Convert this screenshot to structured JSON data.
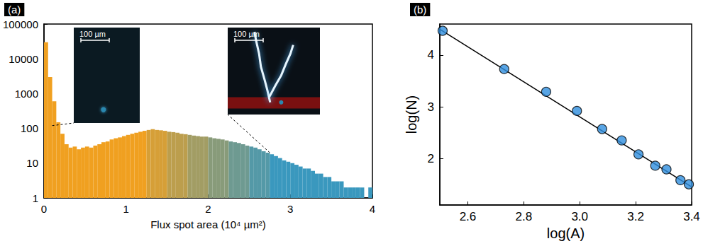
{
  "chart_data": [
    {
      "type": "histogram",
      "panel_label": "(a)",
      "x_label": "Flux spot area (10⁴ µm²)",
      "bins": [
        0,
        0.05,
        0.1,
        0.15,
        0.2,
        0.25,
        0.3,
        0.35,
        0.4,
        0.45,
        0.5,
        0.55,
        0.6,
        0.65,
        0.7,
        0.75,
        0.8,
        0.85,
        0.9,
        0.95,
        1,
        1.05,
        1.1,
        1.15,
        1.2,
        1.25,
        1.3,
        1.35,
        1.4,
        1.45,
        1.5,
        1.55,
        1.6,
        1.65,
        1.7,
        1.75,
        1.8,
        1.85,
        1.9,
        1.95,
        2,
        2.05,
        2.1,
        2.15,
        2.2,
        2.25,
        2.3,
        2.35,
        2.4,
        2.45,
        2.5,
        2.55,
        2.6,
        2.65,
        2.7,
        2.75,
        2.8,
        2.85,
        2.9,
        2.95,
        3,
        3.05,
        3.1,
        3.15,
        3.2,
        3.25,
        3.3,
        3.35,
        3.4,
        3.45,
        3.5,
        3.55,
        3.6,
        3.65,
        3.7,
        3.75,
        3.8,
        3.85,
        3.9,
        3.95,
        4
      ],
      "counts": [
        30000,
        3000,
        600,
        150,
        70,
        35,
        28,
        30,
        25,
        28,
        30,
        28,
        32,
        35,
        40,
        42,
        48,
        52,
        55,
        60,
        65,
        70,
        75,
        80,
        85,
        90,
        95,
        90,
        88,
        85,
        80,
        78,
        75,
        70,
        68,
        65,
        62,
        60,
        58,
        58,
        55,
        52,
        50,
        48,
        45,
        42,
        40,
        38,
        35,
        32,
        30,
        28,
        25,
        22,
        20,
        18,
        16,
        14,
        12,
        11,
        10,
        9,
        8,
        7,
        7,
        6,
        5,
        5,
        4,
        4,
        3,
        3,
        3,
        2,
        2,
        2,
        2,
        2,
        1,
        2
      ],
      "colors": [
        "#f0a020",
        "#f0a020",
        "#f0a020",
        "#f0a020",
        "#f0a020",
        "#f0a020",
        "#f0a020",
        "#f0a020",
        "#f0a020",
        "#f0a020",
        "#f0a020",
        "#f0a020",
        "#f0a020",
        "#f0a020",
        "#f0a020",
        "#f0a020",
        "#f0a020",
        "#f0a020",
        "#f0a020",
        "#f0a020",
        "#f0a020",
        "#f0a020",
        "#f0a020",
        "#f0a020",
        "#f0a020",
        "#d69f37",
        "#d69f37",
        "#d69f37",
        "#d69f37",
        "#d69f37",
        "#bc9e4d",
        "#bc9e4d",
        "#bc9e4d",
        "#bc9e4d",
        "#bc9e4d",
        "#a29d64",
        "#a29d64",
        "#a29d64",
        "#a29d64",
        "#a29d64",
        "#889b7a",
        "#889b7a",
        "#889b7a",
        "#889b7a",
        "#889b7a",
        "#6e9a91",
        "#6e9a91",
        "#6e9a91",
        "#6e9a91",
        "#6e9a91",
        "#5499a7",
        "#5499a7",
        "#5499a7",
        "#5499a7",
        "#5499a7",
        "#3a98be",
        "#3a98be",
        "#3a98be",
        "#3a98be",
        "#3a98be",
        "#3a98be",
        "#3a98be",
        "#3a98be",
        "#3a98be",
        "#3a98be",
        "#3a98be",
        "#3a98be",
        "#3a98be",
        "#3a98be",
        "#3a98be",
        "#3a98be",
        "#3a98be",
        "#3a98be",
        "#3a98be",
        "#3a98be",
        "#3a98be",
        "#3a98be",
        "#3a98be",
        "#3a98be",
        "#3a98be"
      ],
      "xlim": [
        0,
        4
      ],
      "xticks": [
        0,
        1,
        2,
        3,
        4
      ],
      "ylim": [
        1,
        100000
      ],
      "yticks": [
        1,
        10,
        100,
        1000,
        10000,
        100000
      ],
      "log": "y",
      "grid": false,
      "insets": [
        {
          "scale_bar": "100 µm",
          "points_to": {
            "x": 0.1,
            "y": 120
          }
        },
        {
          "scale_bar": "100 µm",
          "points_to": {
            "x": 2.75,
            "y": 20
          }
        }
      ]
    },
    {
      "type": "scatter",
      "panel_label": "(b)",
      "x_label": "log(A)",
      "y_label": "log(N)",
      "x": [
        2.51,
        2.73,
        2.88,
        2.99,
        3.08,
        3.15,
        3.21,
        3.27,
        3.31,
        3.36,
        3.39
      ],
      "values": [
        4.47,
        3.73,
        3.29,
        2.92,
        2.57,
        2.35,
        2.08,
        1.86,
        1.79,
        1.58,
        1.5
      ],
      "color": "#2f8fdf",
      "marker": "circle",
      "fit": {
        "x": [
          2.5,
          3.4
        ],
        "values": [
          4.5,
          1.45
        ]
      },
      "xlim": [
        2.5,
        3.4
      ],
      "xticks": [
        2.6,
        2.8,
        {
          "value": 3,
          "label": "3.0"
        },
        3.2,
        3.4
      ],
      "ylim": [
        1.1,
        4.6
      ],
      "yticks": [
        2,
        3,
        4
      ],
      "grid": false
    }
  ]
}
